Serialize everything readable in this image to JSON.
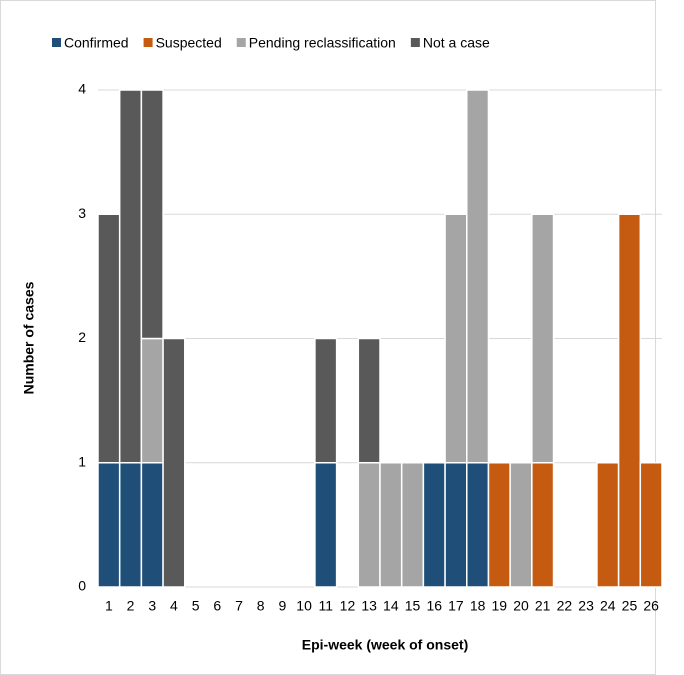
{
  "chart_data": {
    "type": "stacked_bar",
    "x_label": "Epi-week (week of onset)",
    "y_label": "Number of cases",
    "categories": [
      "1",
      "2",
      "3",
      "4",
      "5",
      "6",
      "7",
      "8",
      "9",
      "10",
      "11",
      "12",
      "13",
      "14",
      "15",
      "16",
      "17",
      "18",
      "19",
      "20",
      "21",
      "22",
      "23",
      "24",
      "25",
      "26"
    ],
    "series": [
      {
        "name": "Confirmed",
        "color": "#1f4e79",
        "values": [
          1,
          1,
          1,
          0,
          0,
          0,
          0,
          0,
          0,
          0,
          1,
          0,
          0,
          0,
          0,
          1,
          1,
          1,
          0,
          0,
          0,
          0,
          0,
          0,
          0,
          0
        ]
      },
      {
        "name": "Suspected",
        "color": "#c55a11",
        "values": [
          0,
          0,
          0,
          0,
          0,
          0,
          0,
          0,
          0,
          0,
          0,
          0,
          0,
          0,
          0,
          0,
          0,
          0,
          1,
          0,
          1,
          0,
          0,
          1,
          3,
          1
        ]
      },
      {
        "name": "Pending reclassification",
        "color": "#a5a5a5",
        "values": [
          0,
          0,
          1,
          0,
          0,
          0,
          0,
          0,
          0,
          0,
          0,
          0,
          1,
          1,
          1,
          0,
          2,
          3,
          0,
          1,
          2,
          0,
          0,
          0,
          0,
          0
        ]
      },
      {
        "name": "Not a case",
        "color": "#595959",
        "values": [
          2,
          3,
          2,
          2,
          0,
          0,
          0,
          0,
          0,
          0,
          1,
          0,
          1,
          0,
          0,
          0,
          0,
          0,
          0,
          0,
          0,
          0,
          0,
          0,
          0,
          0
        ]
      }
    ],
    "ylim": [
      0,
      4
    ],
    "yticks": [
      0,
      1,
      2,
      3,
      4
    ],
    "grid": true,
    "legend": "top"
  }
}
